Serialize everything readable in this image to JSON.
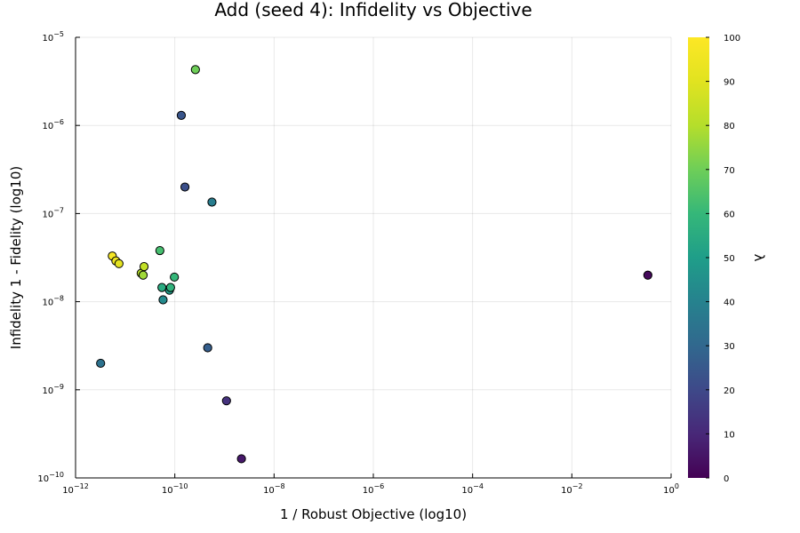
{
  "chart_data": {
    "type": "scatter",
    "title": "Add (seed 4): Infidelity vs Objective",
    "xlabel": "1 / Robust Objective (log10)",
    "ylabel": "Infidelity 1 - Fidelity (log10)",
    "xscale": "log",
    "yscale": "log",
    "xlim": [
      1e-12,
      1
    ],
    "ylim": [
      1e-10,
      1e-05
    ],
    "x_ticks": [
      {
        "value": 1e-12,
        "base": "10",
        "exp": "−12"
      },
      {
        "value": 1e-10,
        "base": "10",
        "exp": "−10"
      },
      {
        "value": 1e-08,
        "base": "10",
        "exp": "−8"
      },
      {
        "value": 1e-06,
        "base": "10",
        "exp": "−6"
      },
      {
        "value": 0.0001,
        "base": "10",
        "exp": "−4"
      },
      {
        "value": 0.01,
        "base": "10",
        "exp": "−2"
      },
      {
        "value": 1,
        "base": "10",
        "exp": "0"
      }
    ],
    "y_ticks": [
      {
        "value": 1e-10,
        "base": "10",
        "exp": "−10"
      },
      {
        "value": 1e-09,
        "base": "10",
        "exp": "−9"
      },
      {
        "value": 1e-08,
        "base": "10",
        "exp": "−8"
      },
      {
        "value": 1e-07,
        "base": "10",
        "exp": "−7"
      },
      {
        "value": 1e-06,
        "base": "10",
        "exp": "−6"
      },
      {
        "value": 1e-05,
        "base": "10",
        "exp": "−5"
      }
    ],
    "colorbar": {
      "label": "λ",
      "range": [
        0,
        100
      ],
      "ticks": [
        "0",
        "10",
        "20",
        "30",
        "40",
        "50",
        "60",
        "70",
        "80",
        "90",
        "100"
      ],
      "colormap": "viridis"
    },
    "grid": true,
    "legend": "none",
    "points": [
      {
        "x": 3.2e-12,
        "y": 2e-09,
        "c": 34
      },
      {
        "x": 5.5e-12,
        "y": 3.3e-08,
        "c": 97
      },
      {
        "x": 6.5e-12,
        "y": 2.9e-08,
        "c": 94
      },
      {
        "x": 7.5e-12,
        "y": 2.7e-08,
        "c": 91
      },
      {
        "x": 2.1e-11,
        "y": 2.1e-08,
        "c": 80
      },
      {
        "x": 2.3e-11,
        "y": 2e-08,
        "c": 77
      },
      {
        "x": 2.4e-11,
        "y": 2.5e-08,
        "c": 83
      },
      {
        "x": 5e-11,
        "y": 3.8e-08,
        "c": 63
      },
      {
        "x": 5.5e-11,
        "y": 1.45e-08,
        "c": 55
      },
      {
        "x": 5.8e-11,
        "y": 1.05e-08,
        "c": 43
      },
      {
        "x": 7.8e-11,
        "y": 1.35e-08,
        "c": 49
      },
      {
        "x": 8.2e-11,
        "y": 1.45e-08,
        "c": 58
      },
      {
        "x": 9.8e-11,
        "y": 1.9e-08,
        "c": 60
      },
      {
        "x": 1.35e-10,
        "y": 1.3e-06,
        "c": 24
      },
      {
        "x": 1.6e-10,
        "y": 2e-07,
        "c": 22
      },
      {
        "x": 2.6e-10,
        "y": 4.3e-06,
        "c": 70
      },
      {
        "x": 4.6e-10,
        "y": 3e-09,
        "c": 27
      },
      {
        "x": 5.6e-10,
        "y": 1.35e-07,
        "c": 38
      },
      {
        "x": 1.1e-09,
        "y": 7.5e-10,
        "c": 13
      },
      {
        "x": 2.2e-09,
        "y": 1.65e-10,
        "c": 6
      },
      {
        "x": 0.34,
        "y": 2e-08,
        "c": 2
      }
    ]
  }
}
